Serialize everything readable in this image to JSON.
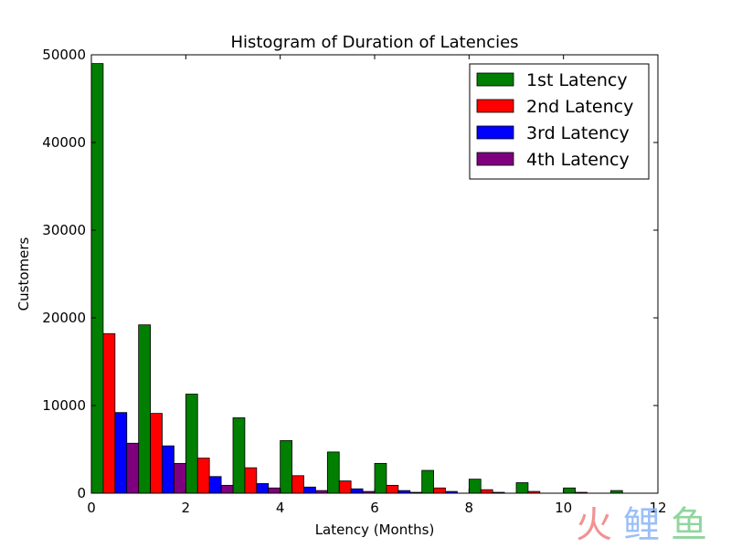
{
  "chart_data": {
    "type": "bar",
    "title": "Histogram of Duration of Latencies",
    "xlabel": "Latency (Months)",
    "ylabel": "Customers",
    "xlim": [
      0,
      12
    ],
    "ylim": [
      0,
      50000
    ],
    "xticks": [
      0,
      2,
      4,
      6,
      8,
      10,
      12
    ],
    "yticks": [
      0,
      10000,
      20000,
      30000,
      40000,
      50000
    ],
    "xtick_labels": [
      "0",
      "2",
      "4",
      "6",
      "8",
      "10",
      "12"
    ],
    "ytick_labels": [
      "0",
      "10000",
      "20000",
      "30000",
      "40000",
      "50000"
    ],
    "bin_starts": [
      0,
      1,
      2,
      3,
      4,
      5,
      6,
      7,
      8,
      9,
      10,
      11
    ],
    "bin_width": 1,
    "grid": false,
    "legend_position": "top-right",
    "series": [
      {
        "name": "1st Latency",
        "color": "#007f00",
        "values": [
          49000,
          19200,
          11300,
          8600,
          6000,
          4700,
          3400,
          2600,
          1600,
          1200,
          600,
          300
        ]
      },
      {
        "name": "2nd Latency",
        "color": "#ff0000",
        "values": [
          18200,
          9100,
          4000,
          2900,
          2000,
          1400,
          900,
          600,
          400,
          200,
          100,
          0
        ]
      },
      {
        "name": "3rd Latency",
        "color": "#0000ff",
        "values": [
          9200,
          5400,
          1900,
          1100,
          700,
          500,
          300,
          200,
          100,
          0,
          0,
          0
        ]
      },
      {
        "name": "4th Latency",
        "color": "#7f007f",
        "values": [
          5700,
          3400,
          900,
          600,
          300,
          200,
          100,
          0,
          0,
          0,
          0,
          0
        ]
      }
    ]
  },
  "watermark": {
    "text": "火鲤鱼",
    "colors": [
      "#f08080",
      "#8ab4f8",
      "#7ccf8c"
    ]
  }
}
